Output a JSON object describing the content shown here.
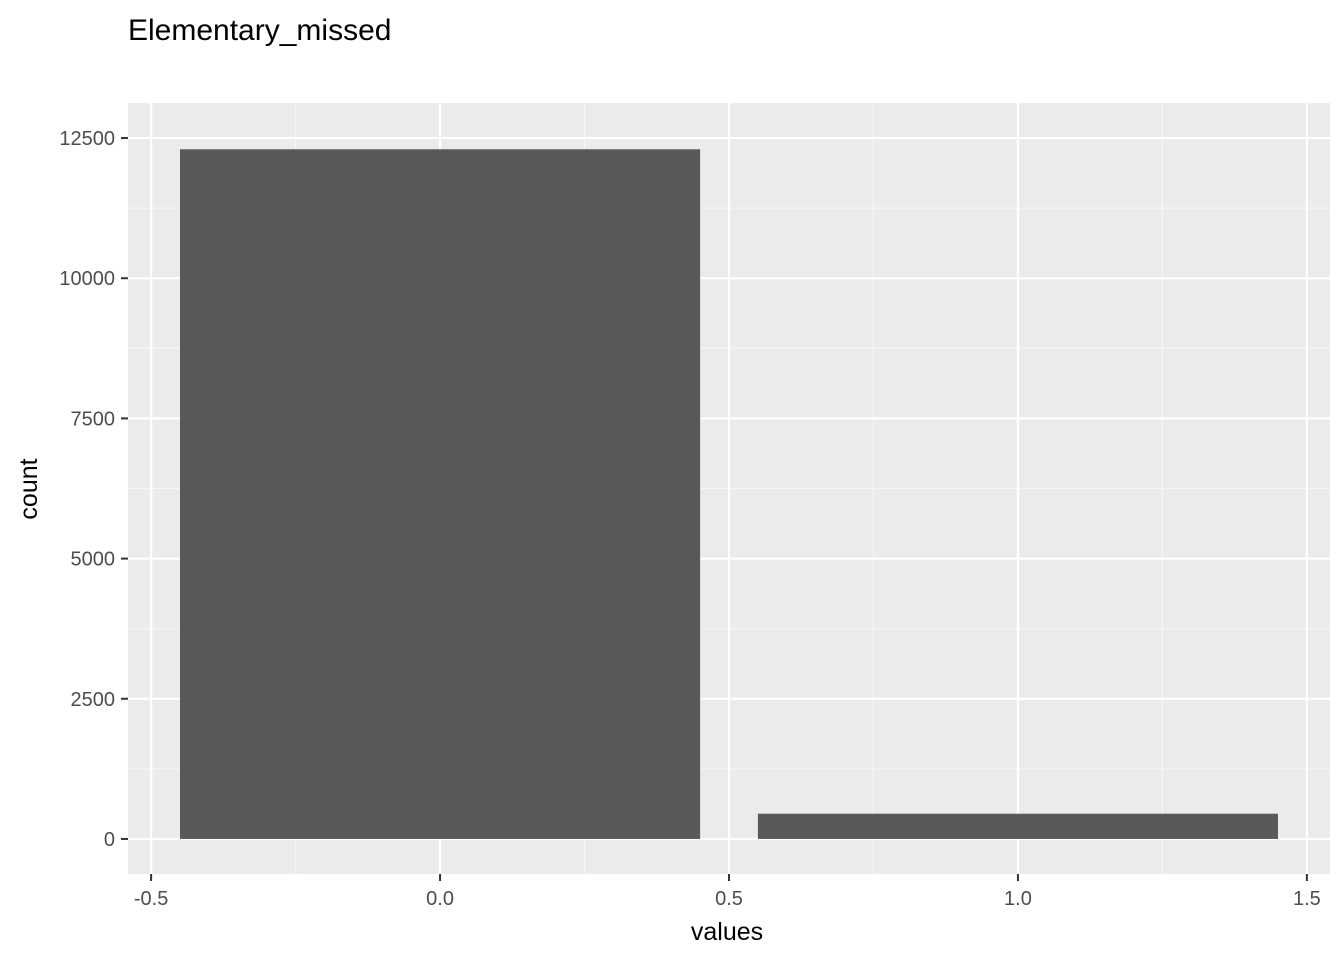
{
  "chart_data": {
    "type": "bar",
    "title": "Elementary_missed",
    "xlabel": "values",
    "ylabel": "count",
    "x": [
      0,
      1
    ],
    "values": [
      12300,
      450
    ],
    "bar_width": 0.9,
    "xlim": [
      -0.54,
      1.54
    ],
    "ylim": [
      -625,
      13125
    ],
    "x_ticks": [
      -0.5,
      0.0,
      0.5,
      1.0,
      1.5
    ],
    "x_tick_labels": [
      "-0.5",
      "0.0",
      "0.5",
      "1.0",
      "1.5"
    ],
    "y_ticks": [
      0,
      2500,
      5000,
      7500,
      10000,
      12500
    ],
    "y_tick_labels": [
      "0",
      "2500",
      "5000",
      "7500",
      "10000",
      "12500"
    ],
    "grid": true,
    "colors": {
      "panel_background": "#ebebeb",
      "grid_major": "#ffffff",
      "grid_minor": "#f6f6f6",
      "bar_fill": "#595959",
      "tick_mark": "#333333"
    }
  }
}
